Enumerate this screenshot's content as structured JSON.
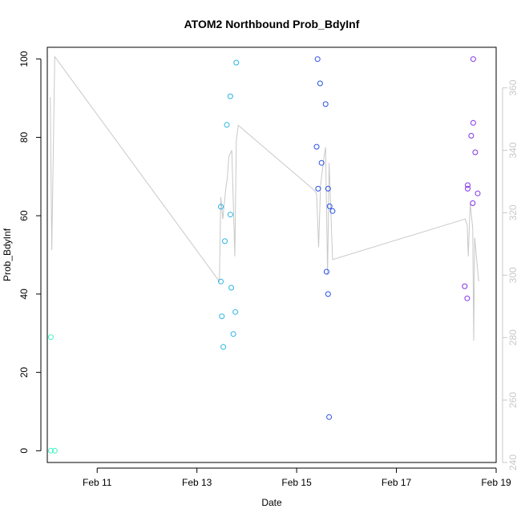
{
  "chart_data": {
    "type": "scatter",
    "title": "ATOM2 Northbound Prob_BdyInf",
    "xlabel": "Date",
    "ylabel": "Prob_BdyInf",
    "x_unit": "day of February",
    "xlim": [
      10.0,
      19.0
    ],
    "xticks": [
      11,
      13,
      15,
      17,
      19
    ],
    "xtick_labels": [
      "Feb 11",
      "Feb 13",
      "Feb 15",
      "Feb 17",
      "Feb 19"
    ],
    "ylim": [
      -3,
      103
    ],
    "yticks": [
      0,
      20,
      40,
      60,
      80,
      100
    ],
    "y2lim": [
      240,
      373
    ],
    "y2ticks": [
      240,
      260,
      280,
      300,
      320,
      340,
      360
    ],
    "grid": false,
    "series": [
      {
        "color": "#3cf5c8",
        "points": [
          [
            10.07,
            29
          ],
          [
            10.07,
            0
          ],
          [
            10.15,
            0
          ]
        ]
      },
      {
        "color": "#28b4e6",
        "points": [
          [
            13.48,
            62.3
          ],
          [
            13.48,
            43.2
          ],
          [
            13.5,
            34.3
          ],
          [
            13.53,
            26.5
          ],
          [
            13.56,
            53.5
          ],
          [
            13.6,
            83.2
          ],
          [
            13.67,
            90.5
          ],
          [
            13.67,
            60.3
          ],
          [
            13.69,
            41.6
          ],
          [
            13.73,
            29.8
          ],
          [
            13.77,
            35.4
          ],
          [
            13.79,
            99.1
          ]
        ]
      },
      {
        "color": "#2850e6",
        "points": [
          [
            15.4,
            77.6
          ],
          [
            15.42,
            100
          ],
          [
            15.43,
            66.9
          ],
          [
            15.47,
            93.8
          ],
          [
            15.5,
            73.5
          ],
          [
            15.58,
            88.5
          ],
          [
            15.6,
            45.7
          ],
          [
            15.63,
            40.0
          ],
          [
            15.63,
            66.9
          ],
          [
            15.65,
            8.6
          ],
          [
            15.66,
            62.4
          ],
          [
            15.72,
            61.2
          ]
        ]
      },
      {
        "color": "#8232e6",
        "points": [
          [
            18.37,
            42.0
          ],
          [
            18.42,
            38.9
          ],
          [
            18.43,
            67.8
          ],
          [
            18.43,
            66.9
          ],
          [
            18.5,
            80.4
          ],
          [
            18.53,
            63.2
          ],
          [
            18.54,
            100
          ],
          [
            18.54,
            83.7
          ],
          [
            18.58,
            76.2
          ],
          [
            18.63,
            65.7
          ]
        ]
      }
    ],
    "line": {
      "color": "#c8c8c8",
      "axis": "right",
      "points": [
        [
          10.06,
          357
        ],
        [
          10.09,
          308
        ],
        [
          10.15,
          370
        ],
        [
          13.45,
          298
        ],
        [
          13.48,
          325
        ],
        [
          13.52,
          318
        ],
        [
          13.58,
          328
        ],
        [
          13.61,
          331
        ],
        [
          13.64,
          338
        ],
        [
          13.7,
          340
        ],
        [
          13.76,
          306
        ],
        [
          13.79,
          343
        ],
        [
          13.83,
          348
        ],
        [
          15.37,
          327
        ],
        [
          15.4,
          326
        ],
        [
          15.44,
          309
        ],
        [
          15.48,
          329
        ],
        [
          15.55,
          338
        ],
        [
          15.58,
          341
        ],
        [
          15.62,
          300
        ],
        [
          15.65,
          336
        ],
        [
          15.72,
          305
        ],
        [
          18.38,
          318
        ],
        [
          18.42,
          316
        ],
        [
          18.44,
          306
        ],
        [
          18.48,
          323
        ],
        [
          18.53,
          315
        ],
        [
          18.55,
          279
        ],
        [
          18.57,
          312
        ],
        [
          18.65,
          298
        ]
      ]
    }
  }
}
